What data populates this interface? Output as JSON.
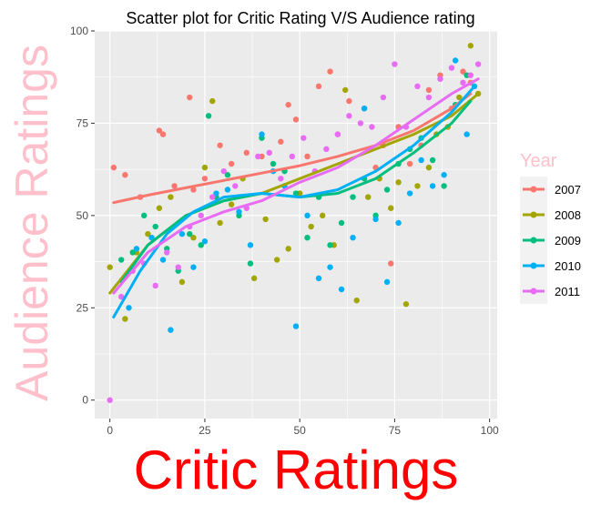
{
  "chart_data": {
    "type": "scatter",
    "title": "Scatter plot for Critic Rating V/S Audience rating",
    "xlabel": "Critic Ratings",
    "ylabel": "Audience Ratings",
    "xlim": [
      -4,
      102
    ],
    "ylim": [
      -5,
      100
    ],
    "x_ticks": [
      0,
      25,
      50,
      75,
      100
    ],
    "y_ticks": [
      0,
      25,
      50,
      75,
      100
    ],
    "grid": true,
    "legend_title": "Year",
    "legend_position": "right",
    "series": [
      {
        "name": "2007",
        "color": "#F8766D",
        "points": [
          [
            1,
            63
          ],
          [
            4,
            61
          ],
          [
            8,
            55
          ],
          [
            13,
            73
          ],
          [
            14,
            72
          ],
          [
            17,
            58
          ],
          [
            21,
            82
          ],
          [
            22,
            57
          ],
          [
            25,
            60
          ],
          [
            29,
            69
          ],
          [
            32,
            64
          ],
          [
            36,
            67
          ],
          [
            40,
            66
          ],
          [
            45,
            70
          ],
          [
            47,
            80
          ],
          [
            49,
            76
          ],
          [
            52,
            66
          ],
          [
            55,
            85
          ],
          [
            58,
            89
          ],
          [
            60,
            72
          ],
          [
            63,
            81
          ],
          [
            67,
            79
          ],
          [
            70,
            63
          ],
          [
            72,
            69
          ],
          [
            74,
            37
          ],
          [
            76,
            74
          ],
          [
            79,
            64
          ],
          [
            82,
            69
          ],
          [
            84,
            84
          ],
          [
            87,
            88
          ],
          [
            90,
            79
          ],
          [
            93,
            89
          ],
          [
            95,
            86
          ]
        ],
        "trend": [
          [
            1,
            53.5
          ],
          [
            10,
            55.5
          ],
          [
            20,
            57.5
          ],
          [
            30,
            59.5
          ],
          [
            40,
            61.5
          ],
          [
            50,
            63.5
          ],
          [
            60,
            66
          ],
          [
            70,
            69
          ],
          [
            80,
            73
          ],
          [
            90,
            79
          ],
          [
            95,
            83
          ]
        ]
      },
      {
        "name": "2008",
        "color": "#A3A500",
        "points": [
          [
            0,
            36
          ],
          [
            4,
            22
          ],
          [
            7,
            40
          ],
          [
            10,
            45
          ],
          [
            13,
            52
          ],
          [
            16,
            55
          ],
          [
            19,
            32
          ],
          [
            22,
            44
          ],
          [
            25,
            63
          ],
          [
            27,
            81
          ],
          [
            29,
            48
          ],
          [
            32,
            53
          ],
          [
            35,
            60
          ],
          [
            38,
            33
          ],
          [
            41,
            49
          ],
          [
            44,
            38
          ],
          [
            47,
            41
          ],
          [
            50,
            56
          ],
          [
            53,
            47
          ],
          [
            56,
            50
          ],
          [
            59,
            42
          ],
          [
            62,
            84
          ],
          [
            65,
            27
          ],
          [
            68,
            55
          ],
          [
            71,
            60
          ],
          [
            74,
            52
          ],
          [
            76,
            59
          ],
          [
            78,
            26
          ],
          [
            81,
            58
          ],
          [
            84,
            63
          ],
          [
            86,
            72
          ],
          [
            89,
            74
          ],
          [
            92,
            82
          ],
          [
            95,
            96
          ],
          [
            97,
            83
          ]
        ],
        "trend": [
          [
            0,
            29
          ],
          [
            10,
            42
          ],
          [
            20,
            50
          ],
          [
            30,
            54
          ],
          [
            40,
            56
          ],
          [
            50,
            60
          ],
          [
            60,
            64
          ],
          [
            70,
            68
          ],
          [
            80,
            72
          ],
          [
            90,
            77
          ],
          [
            97,
            83
          ]
        ]
      },
      {
        "name": "2009",
        "color": "#00BF7D",
        "points": [
          [
            3,
            38
          ],
          [
            6,
            40
          ],
          [
            9,
            50
          ],
          [
            12,
            47
          ],
          [
            15,
            41
          ],
          [
            18,
            35
          ],
          [
            21,
            45
          ],
          [
            24,
            42
          ],
          [
            26,
            77
          ],
          [
            28,
            55
          ],
          [
            31,
            61
          ],
          [
            34,
            50
          ],
          [
            37,
            37
          ],
          [
            40,
            71
          ],
          [
            43,
            64
          ],
          [
            46,
            62
          ],
          [
            49,
            56
          ],
          [
            52,
            44
          ],
          [
            55,
            55
          ],
          [
            58,
            42
          ],
          [
            61,
            48
          ],
          [
            64,
            55
          ],
          [
            67,
            60
          ],
          [
            70,
            50
          ],
          [
            73,
            57
          ],
          [
            76,
            64
          ],
          [
            79,
            68
          ],
          [
            82,
            71
          ],
          [
            85,
            65
          ],
          [
            88,
            58
          ],
          [
            91,
            80
          ],
          [
            94,
            88
          ]
        ],
        "trend": [
          [
            3,
            32
          ],
          [
            10,
            42
          ],
          [
            20,
            50
          ],
          [
            30,
            54
          ],
          [
            40,
            56
          ],
          [
            50,
            55
          ],
          [
            60,
            56
          ],
          [
            70,
            60
          ],
          [
            80,
            67
          ],
          [
            90,
            75
          ],
          [
            95,
            81
          ]
        ]
      },
      {
        "name": "2010",
        "color": "#00B0F6",
        "points": [
          [
            5,
            25
          ],
          [
            7,
            41
          ],
          [
            11,
            44
          ],
          [
            14,
            38
          ],
          [
            16,
            19
          ],
          [
            19,
            45
          ],
          [
            22,
            36
          ],
          [
            25,
            43
          ],
          [
            28,
            56
          ],
          [
            31,
            57
          ],
          [
            34,
            51
          ],
          [
            37,
            42
          ],
          [
            40,
            72
          ],
          [
            43,
            62
          ],
          [
            46,
            58
          ],
          [
            49,
            20
          ],
          [
            52,
            50
          ],
          [
            55,
            33
          ],
          [
            58,
            36
          ],
          [
            61,
            30
          ],
          [
            64,
            44
          ],
          [
            67,
            79
          ],
          [
            70,
            49
          ],
          [
            73,
            32
          ],
          [
            76,
            48
          ],
          [
            79,
            56
          ],
          [
            82,
            65
          ],
          [
            85,
            58
          ],
          [
            88,
            61
          ],
          [
            91,
            92
          ],
          [
            94,
            72
          ],
          [
            96,
            85
          ]
        ],
        "trend": [
          [
            1,
            22.5
          ],
          [
            8,
            35
          ],
          [
            15,
            45
          ],
          [
            22,
            51
          ],
          [
            30,
            55
          ],
          [
            40,
            56
          ],
          [
            50,
            55
          ],
          [
            60,
            57
          ],
          [
            70,
            62
          ],
          [
            80,
            69
          ],
          [
            90,
            78
          ],
          [
            96,
            85
          ]
        ]
      },
      {
        "name": "2011",
        "color": "#E76BF3",
        "points": [
          [
            0,
            0
          ],
          [
            3,
            28
          ],
          [
            6,
            35
          ],
          [
            9,
            37
          ],
          [
            12,
            31
          ],
          [
            15,
            40
          ],
          [
            18,
            36
          ],
          [
            21,
            47
          ],
          [
            24,
            50
          ],
          [
            27,
            55
          ],
          [
            30,
            62
          ],
          [
            33,
            58
          ],
          [
            36,
            52
          ],
          [
            39,
            66
          ],
          [
            42,
            67
          ],
          [
            45,
            60
          ],
          [
            48,
            66
          ],
          [
            51,
            71
          ],
          [
            54,
            62
          ],
          [
            57,
            68
          ],
          [
            60,
            72
          ],
          [
            63,
            77
          ],
          [
            66,
            75
          ],
          [
            69,
            74
          ],
          [
            72,
            82
          ],
          [
            75,
            91
          ],
          [
            78,
            74
          ],
          [
            81,
            85
          ],
          [
            84,
            82
          ],
          [
            87,
            87
          ],
          [
            90,
            90
          ],
          [
            93,
            86
          ],
          [
            95,
            88
          ],
          [
            97,
            91
          ]
        ],
        "trend": [
          [
            1,
            29
          ],
          [
            10,
            40
          ],
          [
            20,
            47
          ],
          [
            30,
            51
          ],
          [
            40,
            54
          ],
          [
            50,
            59
          ],
          [
            60,
            63
          ],
          [
            70,
            69
          ],
          [
            80,
            76
          ],
          [
            90,
            83
          ],
          [
            97,
            87
          ]
        ]
      }
    ]
  }
}
